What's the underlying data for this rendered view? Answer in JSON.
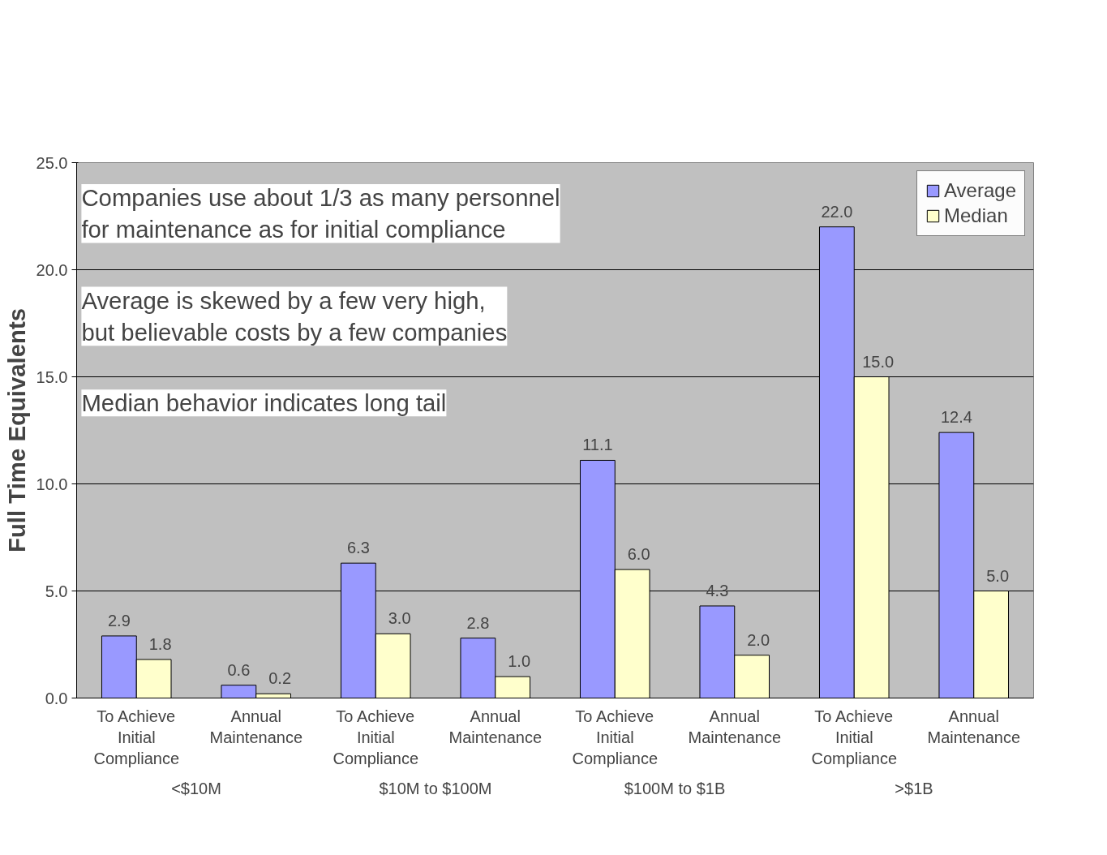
{
  "chart_data": {
    "type": "bar",
    "ylabel": "Full Time Equivalents",
    "categories": [
      "To Achieve Initial Compliance",
      "Annual Maintenance",
      "To Achieve Initial Compliance",
      "Annual Maintenance",
      "To Achieve Initial Compliance",
      "Annual Maintenance",
      "To Achieve Initial Compliance",
      "Annual Maintenance"
    ],
    "series": [
      {
        "name": "Average",
        "color": "#9999ff",
        "values": [
          2.9,
          0.6,
          6.3,
          2.8,
          11.1,
          4.3,
          22.0,
          12.4
        ],
        "value_labels": [
          "2.9",
          "0.6",
          "6.3",
          "2.8",
          "11.1",
          "4.3",
          "22.0",
          "12.4"
        ]
      },
      {
        "name": "Median",
        "color": "#ffffcc",
        "values": [
          1.8,
          0.2,
          3.0,
          1.0,
          6.0,
          2.0,
          15.0,
          5.0
        ],
        "value_labels": [
          "1.8",
          "0.2",
          "3.0",
          "1.0",
          "6.0",
          "2.0",
          "15.0",
          "5.0"
        ]
      }
    ],
    "ylim": [
      0,
      25
    ],
    "yticks": [
      {
        "value": 0,
        "label": "0.0"
      },
      {
        "value": 5,
        "label": "5.0"
      },
      {
        "value": 10,
        "label": "10.0"
      },
      {
        "value": 15,
        "label": "15.0"
      },
      {
        "value": 20,
        "label": "20.0"
      },
      {
        "value": 25,
        "label": "25.0"
      }
    ],
    "grid": "y",
    "legend": "top right",
    "annotations": [
      "Companies use about 1/3 as many personnel\nfor maintenance as for initial compliance",
      "Average is skewed by a few very high,\nbut believable costs by a few companies",
      "Median behavior indicates long tail",
      "<$10M",
      "$10M to $100M",
      "$100M to $1B",
      ">$1B"
    ]
  }
}
